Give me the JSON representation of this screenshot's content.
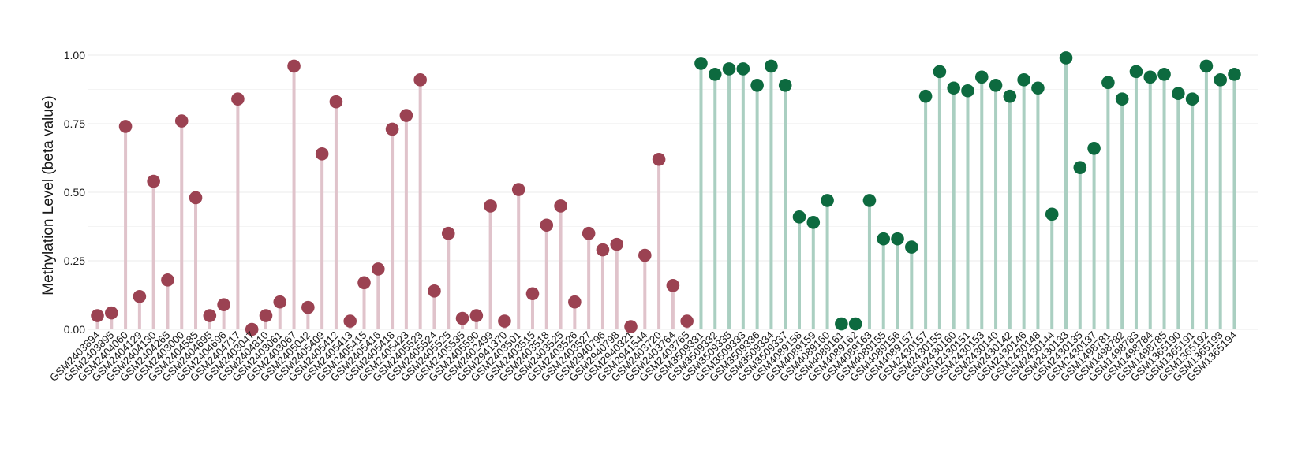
{
  "chart_data": {
    "type": "lollipop",
    "title": "",
    "xlabel": "",
    "ylabel": "Methylation Level (beta value)",
    "ylim": [
      0,
      1.0
    ],
    "yticks": [
      "0.00",
      "0.25",
      "0.50",
      "0.75",
      "1.00"
    ],
    "grid": true,
    "colors": {
      "group1_point": "#9b4252",
      "group1_stem": "#e0c3cb",
      "group2_point": "#0d6a3f",
      "group2_stem": "#aacfc1"
    },
    "groups": [
      {
        "color_key": "group1",
        "samples": [
          "GSM2403894",
          "GSM2403895",
          "GSM2404060",
          "GSM2404129",
          "GSM2404130",
          "GSM2404265",
          "GSM2403000",
          "GSM2404585",
          "GSM2404695",
          "GSM2404696",
          "GSM2404717",
          "GSM2403047",
          "GSM2404810",
          "GSM2403061",
          "GSM2403067",
          "GSM2405042",
          "GSM2405409",
          "GSM2405412",
          "GSM2405413",
          "GSM2405415",
          "GSM2405416",
          "GSM2405418",
          "GSM2405423",
          "GSM2405523",
          "GSM2405524",
          "GSM2405525",
          "GSM2405535",
          "GSM2405590",
          "GSM2402499",
          "GSM2941370",
          "GSM2403501",
          "GSM2403515",
          "GSM2403518",
          "GSM2403525",
          "GSM2403526",
          "GSM2403527",
          "GSM2940796",
          "GSM2940798",
          "GSM2940321",
          "GSM2941544",
          "GSM2403720",
          "GSM2403764",
          "GSM2403765"
        ],
        "values": [
          0.05,
          0.06,
          0.74,
          0.12,
          0.54,
          0.18,
          0.76,
          0.48,
          0.05,
          0.09,
          0.84,
          0.0,
          0.05,
          0.1,
          0.96,
          0.08,
          0.64,
          0.83,
          0.03,
          0.17,
          0.22,
          0.73,
          0.78,
          0.91,
          0.14,
          0.35,
          0.04,
          0.05,
          0.45,
          0.03,
          0.51,
          0.13,
          0.38,
          0.45,
          0.1,
          0.35,
          0.29,
          0.31,
          0.01,
          0.27,
          0.62,
          0.16,
          0.03
        ]
      },
      {
        "color_key": "group2",
        "samples": [
          "GSM3509331",
          "GSM3509332",
          "GSM3509335",
          "GSM3509333",
          "GSM3509336",
          "GSM3509334",
          "GSM3509337",
          "GSM4089158",
          "GSM4089159",
          "GSM4089160",
          "GSM4089161",
          "GSM4089162",
          "GSM4089163",
          "GSM4089155",
          "GSM4089156",
          "GSM4089157",
          "GSM2430157",
          "GSM2430155",
          "GSM2430160",
          "GSM2430151",
          "GSM2430153",
          "GSM2430140",
          "GSM2430142",
          "GSM2430146",
          "GSM2430148",
          "GSM2430144",
          "GSM2430133",
          "GSM2430135",
          "GSM2430137",
          "GSM1498781",
          "GSM1498782",
          "GSM1498783",
          "GSM1498784",
          "GSM1498785",
          "GSM1365190",
          "GSM1365191",
          "GSM1365192",
          "GSM1365193",
          "GSM1365194"
        ],
        "values": [
          0.97,
          0.93,
          0.95,
          0.95,
          0.89,
          0.96,
          0.89,
          0.41,
          0.39,
          0.47,
          0.02,
          0.02,
          0.47,
          0.33,
          0.33,
          0.3,
          0.85,
          0.94,
          0.88,
          0.87,
          0.92,
          0.89,
          0.85,
          0.91,
          0.88,
          0.42,
          0.99,
          0.59,
          0.66,
          0.9,
          0.84,
          0.94,
          0.92,
          0.93,
          0.86,
          0.84,
          0.96,
          0.91,
          0.93
        ]
      }
    ]
  }
}
